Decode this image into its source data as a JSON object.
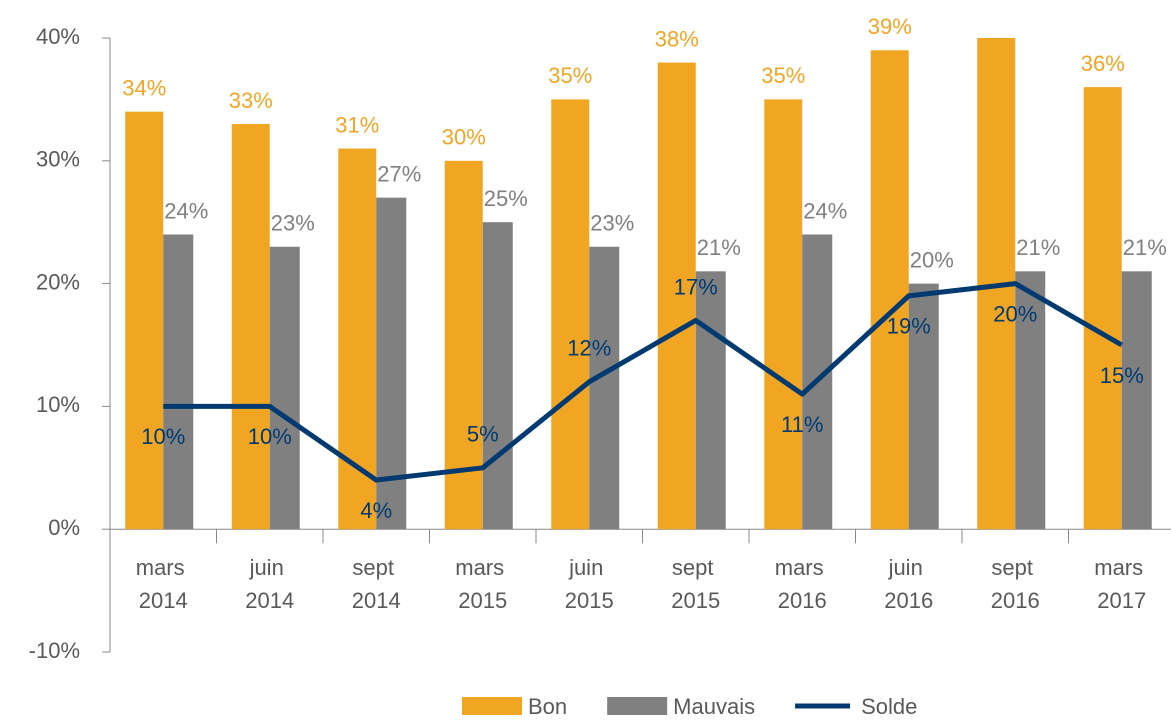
{
  "chart_data": {
    "type": "bar",
    "categories": [
      "mars 2014",
      "juin 2014",
      "sept 2014",
      "mars 2015",
      "juin 2015",
      "sept 2015",
      "mars 2016",
      "juin 2016",
      "sept 2016",
      "mars 2017"
    ],
    "series": [
      {
        "name": "Bon",
        "color": "#f0a523",
        "values": [
          34,
          33,
          31,
          30,
          35,
          38,
          35,
          39,
          40,
          36
        ],
        "value_labels": [
          "34%",
          "33%",
          "31%",
          "30%",
          "35%",
          "38%",
          "35%",
          "39%",
          null,
          "36%"
        ]
      },
      {
        "name": "Mauvais",
        "color": "#808080",
        "values": [
          24,
          23,
          27,
          25,
          23,
          21,
          24,
          20,
          21,
          21
        ],
        "value_labels": [
          "24%",
          "23%",
          "27%",
          "25%",
          "23%",
          "21%",
          "24%",
          "20%",
          "21%",
          "21%"
        ]
      },
      {
        "name": "Solde",
        "type": "line",
        "color": "#003a70",
        "values": [
          10,
          10,
          4,
          5,
          12,
          17,
          11,
          19,
          20,
          15
        ],
        "value_labels": [
          "10%",
          "10%",
          "4%",
          "5%",
          "12%",
          "17%",
          "11%",
          "19%",
          "20%",
          "15%"
        ]
      }
    ],
    "ylim": [
      -10,
      40
    ],
    "yticks": [
      {
        "value": -10,
        "label": "-10%"
      },
      {
        "value": 0,
        "label": "0%"
      },
      {
        "value": 10,
        "label": "10%"
      },
      {
        "value": 20,
        "label": "20%"
      },
      {
        "value": 30,
        "label": "30%"
      },
      {
        "value": 40,
        "label": "40%"
      }
    ],
    "legend": "bottom"
  }
}
